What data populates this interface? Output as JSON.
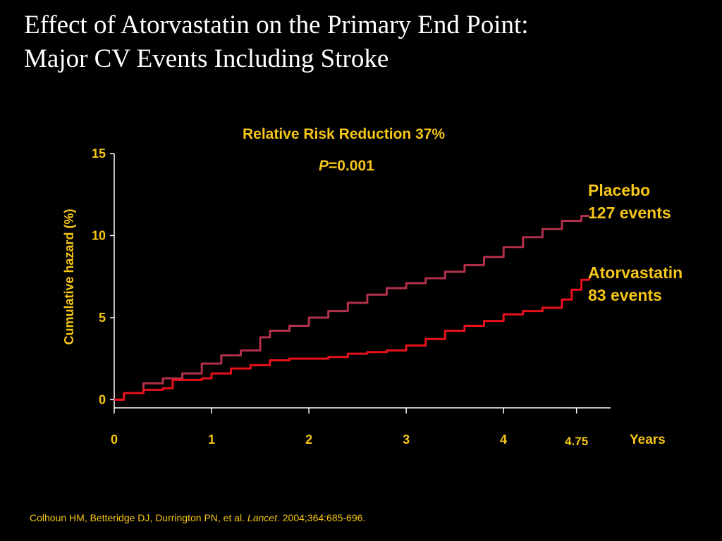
{
  "slide": {
    "title_line1": "Effect of Atorvastatin on the Primary End Point:",
    "title_line2": "Major CV Events Including Stroke"
  },
  "annotations": {
    "rrr": "Relative Risk Reduction 37%",
    "p_letter": "P",
    "p_value": "=0.001"
  },
  "citation": {
    "authors": "Colhoun HM, Betteridge DJ, Durrington PN, et al. ",
    "journal": "Lancet",
    "details": ". 2004;364:685-696."
  },
  "colors": {
    "background": "#000000",
    "text_accent": "#f5c518",
    "axis": "#ffffff",
    "placebo": "#b2304a",
    "atorvastatin": "#e8101a"
  },
  "chart_data": {
    "type": "line",
    "title": "",
    "xlabel": "Years",
    "ylabel": "Cumulative hazard (%)",
    "xlim": [
      0,
      5.1
    ],
    "ylim": [
      -0.5,
      15
    ],
    "x_ticks": [
      0,
      1,
      2,
      3,
      4,
      4.75
    ],
    "x_tick_labels": [
      "0",
      "1",
      "2",
      "3",
      "4",
      "4.75"
    ],
    "y_ticks": [
      0,
      5,
      10,
      15
    ],
    "y_tick_labels": [
      "0",
      "5",
      "10",
      "15"
    ],
    "grid": false,
    "series": [
      {
        "name": "Placebo",
        "label_line1": "Placebo",
        "label_line2": "127 events",
        "color": "#b2304a",
        "x": [
          0,
          0.1,
          0.3,
          0.5,
          0.7,
          0.9,
          1.1,
          1.3,
          1.5,
          1.6,
          1.8,
          2.0,
          2.2,
          2.4,
          2.6,
          2.8,
          3.0,
          3.2,
          3.4,
          3.6,
          3.8,
          4.0,
          4.2,
          4.4,
          4.6,
          4.8,
          4.88
        ],
        "y": [
          0,
          0.4,
          1.0,
          1.3,
          1.6,
          2.2,
          2.7,
          3.0,
          3.8,
          4.2,
          4.5,
          5.0,
          5.4,
          5.9,
          6.4,
          6.8,
          7.1,
          7.4,
          7.8,
          8.2,
          8.7,
          9.3,
          9.9,
          10.4,
          10.9,
          11.2,
          11.2
        ]
      },
      {
        "name": "Atorvastatin",
        "label_line1": "Atorvastatin",
        "label_line2": "83 events",
        "color": "#e8101a",
        "x": [
          0,
          0.1,
          0.3,
          0.5,
          0.6,
          0.9,
          1.0,
          1.2,
          1.4,
          1.6,
          1.8,
          2.0,
          2.2,
          2.4,
          2.6,
          2.8,
          3.0,
          3.2,
          3.4,
          3.6,
          3.8,
          4.0,
          4.2,
          4.4,
          4.6,
          4.7,
          4.8,
          4.88
        ],
        "y": [
          0,
          0.4,
          0.6,
          0.7,
          1.2,
          1.3,
          1.6,
          1.9,
          2.1,
          2.4,
          2.5,
          2.5,
          2.6,
          2.8,
          2.9,
          3.0,
          3.3,
          3.7,
          4.2,
          4.5,
          4.8,
          5.2,
          5.4,
          5.6,
          6.1,
          6.7,
          7.3,
          7.4
        ]
      }
    ]
  }
}
